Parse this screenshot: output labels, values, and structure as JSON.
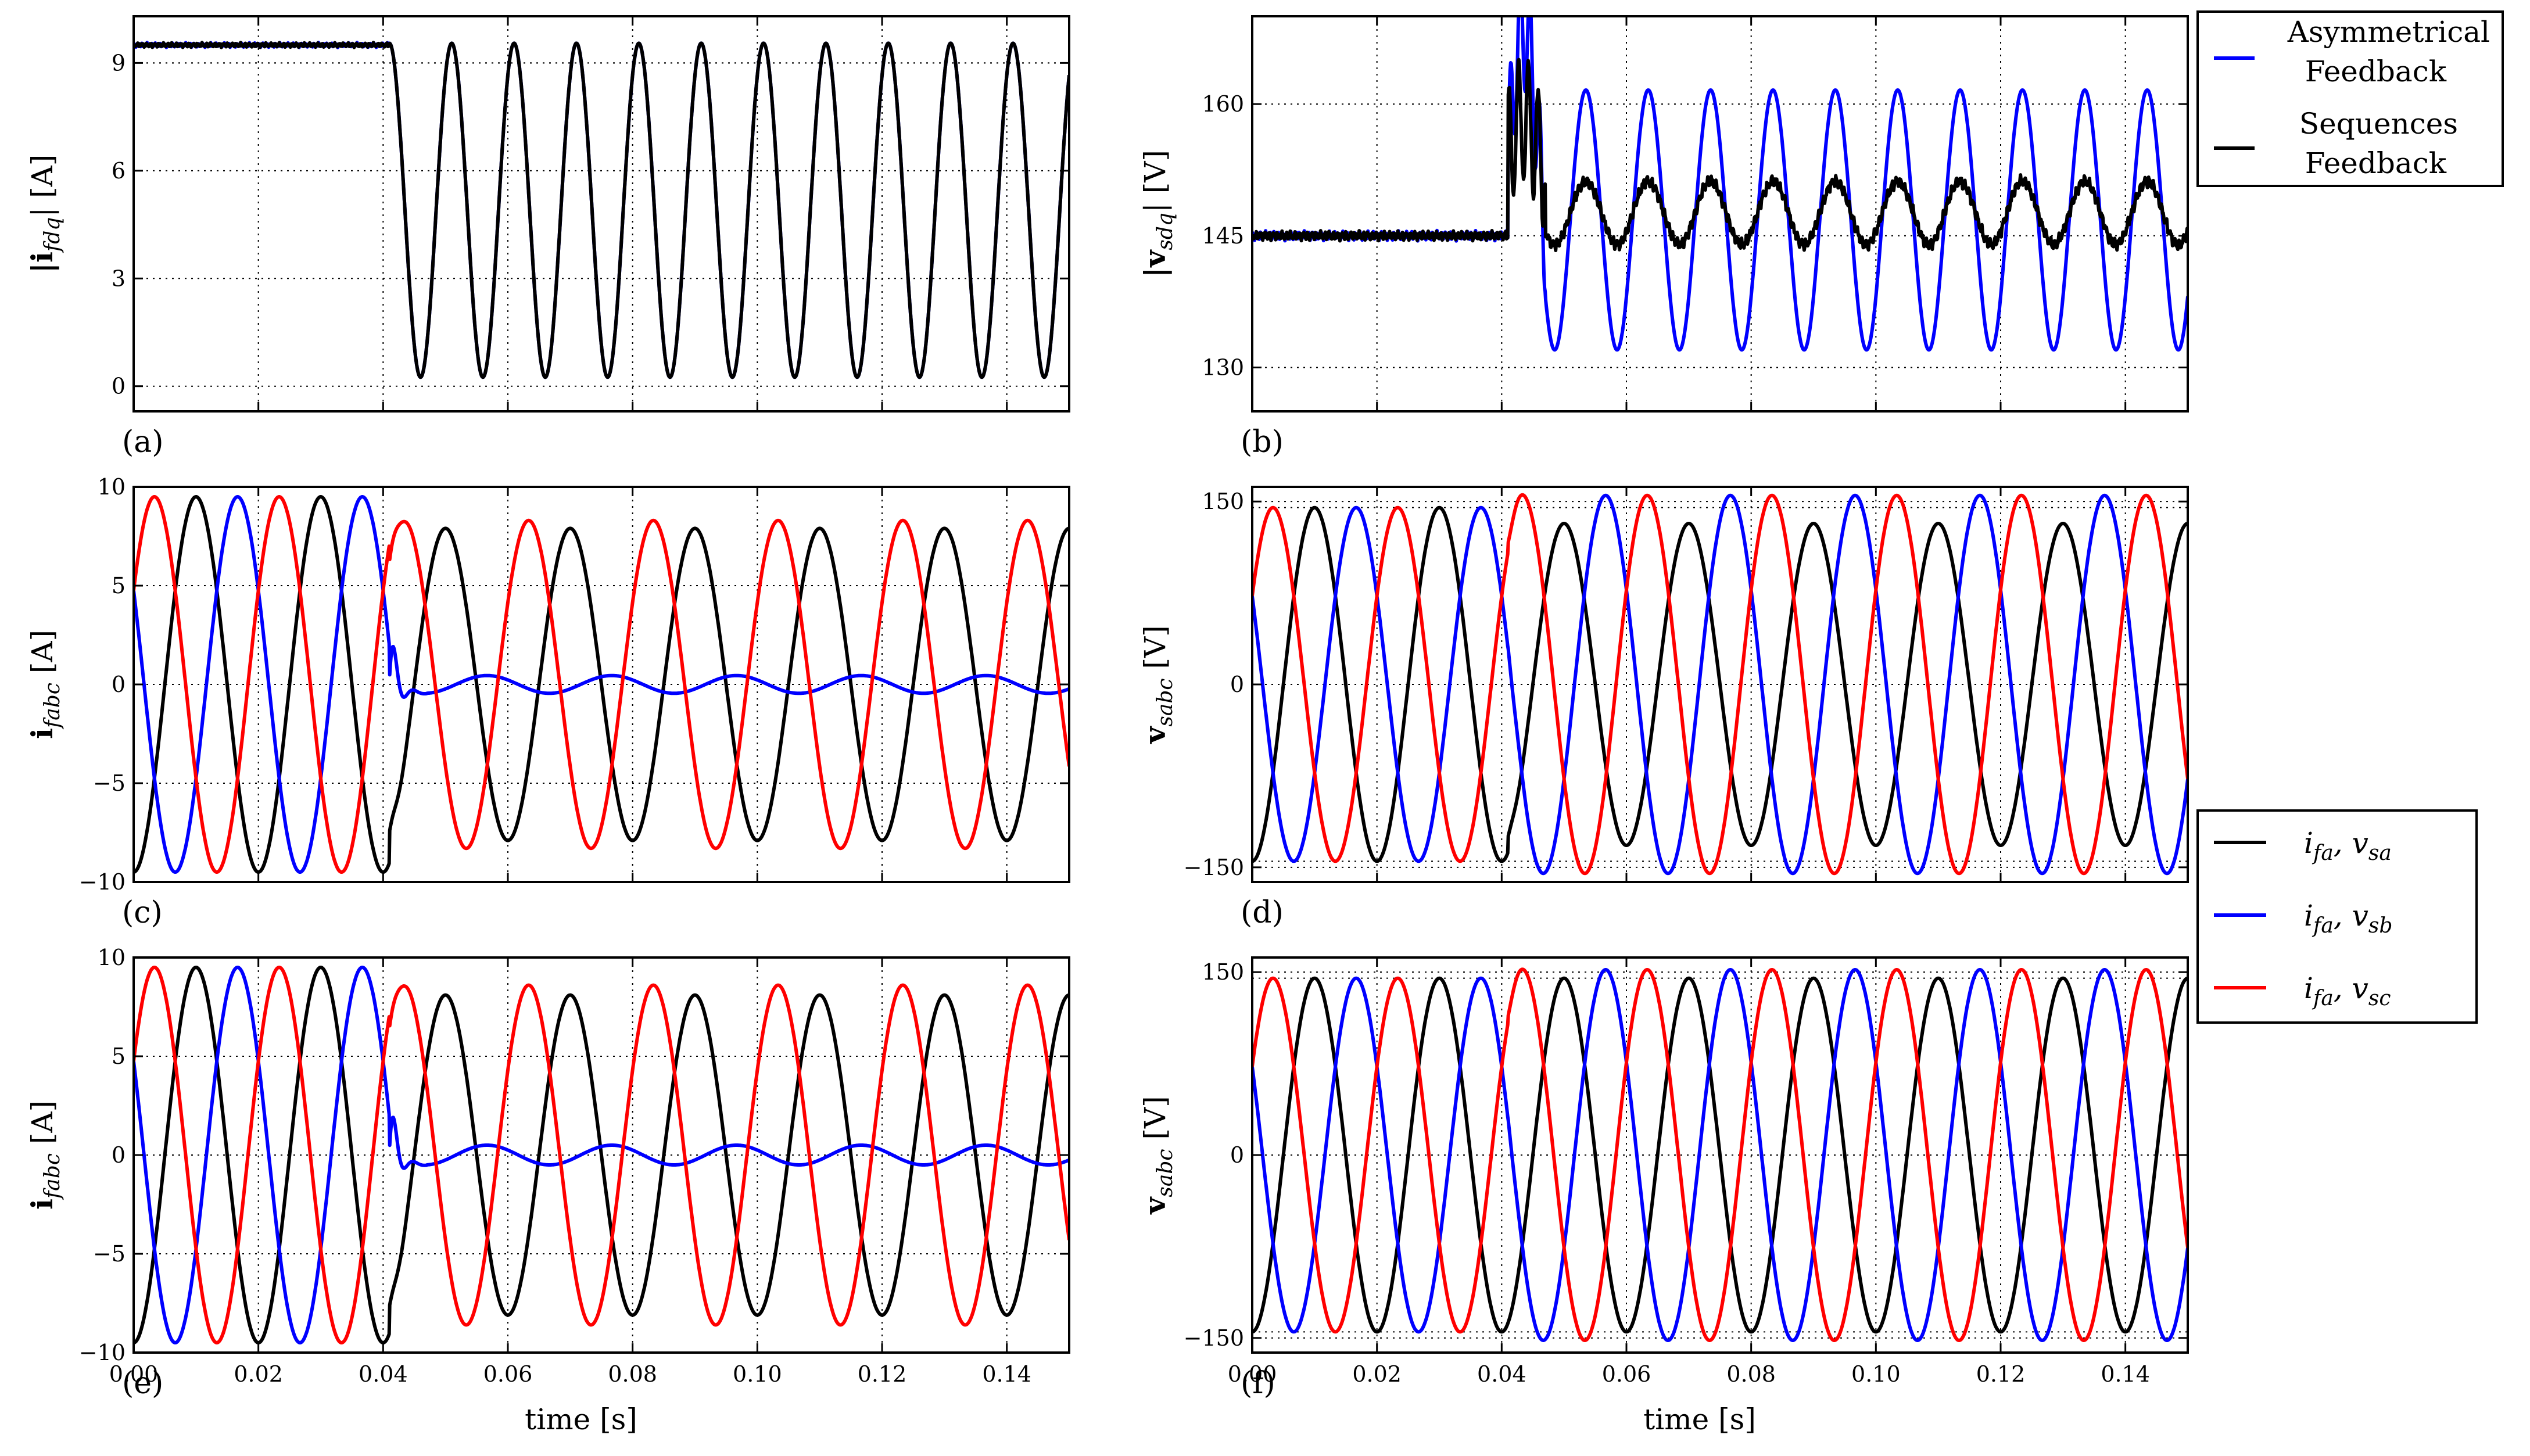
{
  "legend_top": {
    "entries": [
      {
        "label_line1": "Asymmetrical",
        "label_line2": "Feedback",
        "color": "#0000ff"
      },
      {
        "label_line1": "Sequences",
        "label_line2": "Feedback",
        "color": "#000000"
      }
    ]
  },
  "legend_bottom": {
    "entries": [
      {
        "i": "i",
        "i_sub": "fa",
        "v": "v",
        "v_sub": "sa",
        "color": "#000000"
      },
      {
        "i": "i",
        "i_sub": "fa",
        "v": "v",
        "v_sub": "sb",
        "color": "#0000ff"
      },
      {
        "i": "i",
        "i_sub": "fa",
        "v": "v",
        "v_sub": "sc",
        "color": "#ff0000"
      }
    ]
  },
  "xlabel": "time [s]",
  "chart_data": [
    {
      "id": "a",
      "panel_label": "(a)",
      "type": "line",
      "ylabel_main": "|i",
      "ylabel_sub": "fdq",
      "ylabel_unit": "| [A]",
      "xlim": [
        0,
        0.15
      ],
      "ylim": [
        -0.7,
        10.3
      ],
      "yticks": [
        0,
        3,
        6,
        9
      ],
      "ytick_labels": [
        "0",
        "3",
        "6",
        "9"
      ],
      "xticks": [
        0,
        0.02,
        0.04,
        0.06,
        0.08,
        0.1,
        0.12,
        0.14
      ],
      "xtick_labels": [],
      "hline": 9.0,
      "grid": true,
      "series": [
        {
          "color": "#0000ff",
          "pre_fault": 9.5,
          "post_fault": {
            "center": 4.9,
            "amplitude": 4.65,
            "frequency_hz": 100,
            "phase_deg": 90
          }
        },
        {
          "color": "#000000",
          "pre_fault": 9.5,
          "post_fault": {
            "center": 4.9,
            "amplitude": 4.65,
            "frequency_hz": 100,
            "phase_deg": 90
          }
        }
      ],
      "fault_time": 0.041
    },
    {
      "id": "b",
      "panel_label": "(b)",
      "type": "line",
      "ylabel_main": "|v",
      "ylabel_sub": "sdq",
      "ylabel_unit": "| [V]",
      "xlim": [
        0,
        0.15
      ],
      "ylim": [
        125,
        170
      ],
      "yticks": [
        130,
        145,
        160
      ],
      "ytick_labels": [
        "130",
        "145",
        "160"
      ],
      "xticks": [
        0,
        0.02,
        0.04,
        0.06,
        0.08,
        0.1,
        0.12,
        0.14
      ],
      "xtick_labels": [],
      "grid": true,
      "series": [
        {
          "color": "#0000ff",
          "pre_fault": 145,
          "post_fault": {
            "center": 146.8,
            "amplitude": 14.8,
            "frequency_hz": 100,
            "phase_deg": 0
          }
        },
        {
          "color": "#000000",
          "pre_fault": 145,
          "post_fault": {
            "center": 147.6,
            "amplitude": 3.6,
            "frequency_hz": 100,
            "phase_deg": 0
          }
        }
      ],
      "fault_time": 0.041
    },
    {
      "id": "c",
      "panel_label": "(c)",
      "type": "line",
      "ylabel_main": "i",
      "ylabel_sub": "fabc",
      "ylabel_unit": " [A]",
      "xlim": [
        0,
        0.15
      ],
      "ylim": [
        -10,
        10
      ],
      "yticks": [
        -10,
        -5,
        0,
        5,
        10
      ],
      "ytick_labels": [
        "−10",
        "−5",
        "0",
        "5",
        "10"
      ],
      "xticks": [
        0,
        0.02,
        0.04,
        0.06,
        0.08,
        0.1,
        0.12,
        0.14
      ],
      "xtick_labels": [],
      "grid": true,
      "series": [
        {
          "color": "#000000",
          "pre_fault_amp": 9.5,
          "post_fault_amp": 7.9,
          "phase_deg": 0
        },
        {
          "color": "#0000ff",
          "pre_fault_amp": 9.5,
          "post_fault_amp": 0.45,
          "phase_deg": -120
        },
        {
          "color": "#ff0000",
          "pre_fault_amp": 9.5,
          "post_fault_amp": 8.3,
          "phase_deg": 120
        }
      ],
      "fault_time": 0.041
    },
    {
      "id": "d",
      "panel_label": "(d)",
      "type": "line",
      "ylabel_main": "v",
      "ylabel_sub": "sabc",
      "ylabel_unit": " [V]",
      "xlim": [
        0,
        0.15
      ],
      "ylim": [
        -162,
        162
      ],
      "yticks": [
        -150,
        0,
        150
      ],
      "ytick_labels": [
        "−150",
        "0",
        "150"
      ],
      "xticks": [
        0,
        0.02,
        0.04,
        0.06,
        0.08,
        0.1,
        0.12,
        0.14
      ],
      "xtick_labels": [],
      "hline": 145,
      "grid": true,
      "series": [
        {
          "color": "#000000",
          "pre_fault_amp": 145,
          "post_fault_amp": 132,
          "phase_deg": 0
        },
        {
          "color": "#0000ff",
          "pre_fault_amp": 145,
          "post_fault_amp": 155,
          "phase_deg": -120
        },
        {
          "color": "#ff0000",
          "pre_fault_amp": 145,
          "post_fault_amp": 155,
          "phase_deg": 120
        }
      ],
      "fault_time": 0.041
    },
    {
      "id": "e",
      "panel_label": "(e)",
      "type": "line",
      "ylabel_main": "i",
      "ylabel_sub": "fabc",
      "ylabel_unit": " [A]",
      "xlim": [
        0,
        0.15
      ],
      "ylim": [
        -10,
        10
      ],
      "yticks": [
        -10,
        -5,
        0,
        5,
        10
      ],
      "ytick_labels": [
        "−10",
        "−5",
        "0",
        "5",
        "10"
      ],
      "xticks": [
        0,
        0.02,
        0.04,
        0.06,
        0.08,
        0.1,
        0.12,
        0.14
      ],
      "xtick_labels": [
        "0.00",
        "0.02",
        "0.04",
        "0.06",
        "0.08",
        "0.10",
        "0.12",
        "0.14"
      ],
      "grid": true,
      "series": [
        {
          "color": "#000000",
          "pre_fault_amp": 9.5,
          "post_fault_amp": 8.1,
          "phase_deg": 0
        },
        {
          "color": "#0000ff",
          "pre_fault_amp": 9.5,
          "post_fault_amp": 0.5,
          "phase_deg": -120
        },
        {
          "color": "#ff0000",
          "pre_fault_amp": 9.5,
          "post_fault_amp": 8.6,
          "phase_deg": 120
        }
      ],
      "fault_time": 0.041
    },
    {
      "id": "f",
      "panel_label": "(f)",
      "type": "line",
      "ylabel_main": "v",
      "ylabel_sub": "sabc",
      "ylabel_unit": " [V]",
      "xlim": [
        0,
        0.15
      ],
      "ylim": [
        -162,
        162
      ],
      "yticks": [
        -150,
        0,
        150
      ],
      "ytick_labels": [
        "−150",
        "0",
        "150"
      ],
      "xticks": [
        0,
        0.02,
        0.04,
        0.06,
        0.08,
        0.1,
        0.12,
        0.14
      ],
      "xtick_labels": [
        "0.00",
        "0.02",
        "0.04",
        "0.06",
        "0.08",
        "0.10",
        "0.12",
        "0.14"
      ],
      "hline": 145,
      "grid": true,
      "series": [
        {
          "color": "#000000",
          "pre_fault_amp": 145,
          "post_fault_amp": 145,
          "phase_deg": 0
        },
        {
          "color": "#0000ff",
          "pre_fault_amp": 145,
          "post_fault_amp": 152,
          "phase_deg": -120
        },
        {
          "color": "#ff0000",
          "pre_fault_amp": 145,
          "post_fault_amp": 152,
          "phase_deg": 120
        }
      ],
      "fault_time": 0.041
    }
  ]
}
